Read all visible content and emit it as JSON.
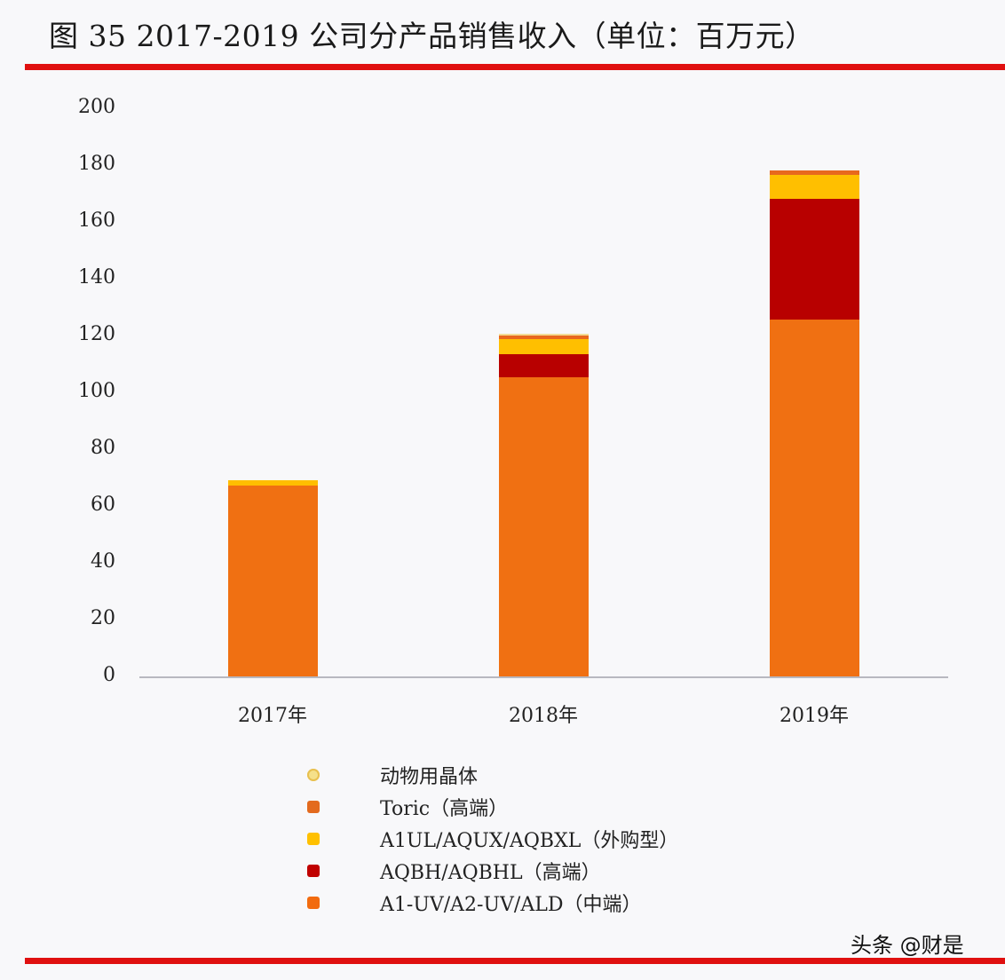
{
  "header": {
    "title": "图 35 2017-2019 公司分产品销售收入（单位：百万元）",
    "rule_color": "#e01010"
  },
  "watermark": "头条 @财是",
  "chart_data": {
    "type": "bar",
    "stacked": true,
    "title": "图 35 2017-2019 公司分产品销售收入（单位：百万元）",
    "xlabel": "",
    "ylabel": "",
    "ylim": [
      0,
      200
    ],
    "yticks": [
      0,
      20,
      40,
      60,
      80,
      100,
      120,
      140,
      160,
      180,
      200
    ],
    "grid": false,
    "legend_position": "bottom",
    "categories": [
      "2017年",
      "2018年",
      "2019年"
    ],
    "series": [
      {
        "name": "A1-UV/A2-UV/ALD（中端）",
        "color": "#f07012",
        "values": [
          67.2,
          105.3,
          125.6
        ]
      },
      {
        "name": "AQBH/AQBHL（高端）",
        "color": "#b80000",
        "values": [
          0.0,
          8.1,
          42.5
        ]
      },
      {
        "name": "A1UL/AQUX/AQBXL（外购型）",
        "color": "#ffbf00",
        "values": [
          1.9,
          5.3,
          8.4
        ]
      },
      {
        "name": "Toric（高端）",
        "color": "#e8681e",
        "values": [
          0.0,
          1.2,
          1.6
        ]
      },
      {
        "name": "动物用晶体",
        "color": "#f3dc94",
        "values": [
          0.0,
          0.6,
          0.0
        ]
      }
    ],
    "totals": [
      69.1,
      120.5,
      178.1
    ]
  },
  "legend": [
    {
      "label": "动物用晶体",
      "color": "#f5e08a",
      "shape": "circle"
    },
    {
      "label": "Toric（高端）",
      "color": "#e36a1e",
      "shape": "square"
    },
    {
      "label": "A1UL/AQUX/AQBXL（外购型）",
      "color": "#ffc000",
      "shape": "square"
    },
    {
      "label": "AQBH/AQBHL（高端）",
      "color": "#c00000",
      "shape": "square"
    },
    {
      "label": "A1-UV/A2-UV/ALD（中端）",
      "color": "#f26b0f",
      "shape": "square"
    }
  ]
}
